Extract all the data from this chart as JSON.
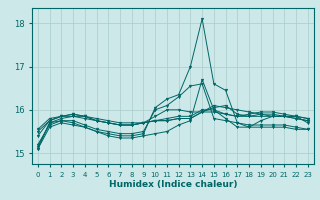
{
  "xlabel": "Humidex (Indice chaleur)",
  "ylabel": "",
  "xlim": [
    -0.5,
    23.5
  ],
  "ylim": [
    14.75,
    18.35
  ],
  "yticks": [
    15,
    16,
    17,
    18
  ],
  "xtick_labels": [
    "0",
    "1",
    "2",
    "3",
    "4",
    "5",
    "6",
    "7",
    "8",
    "9",
    "10",
    "11",
    "12",
    "13",
    "14",
    "15",
    "16",
    "17",
    "18",
    "19",
    "20",
    "21",
    "22",
    "23"
  ],
  "bg_color": "#cde8e8",
  "line_color": "#006666",
  "grid_color": "#aacccc",
  "series": [
    [
      15.1,
      15.7,
      15.8,
      15.85,
      15.8,
      15.75,
      15.7,
      15.65,
      15.65,
      15.7,
      15.75,
      15.75,
      15.8,
      15.8,
      15.95,
      16.1,
      16.05,
      16.0,
      15.95,
      15.9,
      15.85,
      15.85,
      15.8,
      15.75
    ],
    [
      15.4,
      15.75,
      15.85,
      15.9,
      15.85,
      15.75,
      15.7,
      15.65,
      15.65,
      15.7,
      15.75,
      15.8,
      15.85,
      15.85,
      16.0,
      16.0,
      15.9,
      15.85,
      15.85,
      15.9,
      15.9,
      15.85,
      15.8,
      15.75
    ],
    [
      15.5,
      15.75,
      15.85,
      15.9,
      15.85,
      15.75,
      15.7,
      15.65,
      15.65,
      15.7,
      15.75,
      15.75,
      15.8,
      15.8,
      15.95,
      15.95,
      15.9,
      15.85,
      15.9,
      15.95,
      15.95,
      15.9,
      15.85,
      15.8
    ],
    [
      15.55,
      15.8,
      15.85,
      15.85,
      15.85,
      15.8,
      15.75,
      15.7,
      15.7,
      15.7,
      15.85,
      16.0,
      16.0,
      15.95,
      15.95,
      16.05,
      16.1,
      15.9,
      15.85,
      15.85,
      15.85,
      15.85,
      15.85,
      15.8
    ],
    [
      15.15,
      15.7,
      15.75,
      15.75,
      15.65,
      15.55,
      15.5,
      15.45,
      15.45,
      15.5,
      16.0,
      16.1,
      16.3,
      16.55,
      16.6,
      15.8,
      15.75,
      15.7,
      15.65,
      15.65,
      15.65,
      15.65,
      15.6,
      15.55
    ],
    [
      15.2,
      15.65,
      15.75,
      15.7,
      15.6,
      15.5,
      15.45,
      15.4,
      15.4,
      15.45,
      16.05,
      16.25,
      16.35,
      17.0,
      18.1,
      16.6,
      16.45,
      15.7,
      15.6,
      15.6,
      15.6,
      15.6,
      15.55,
      15.55
    ],
    [
      15.1,
      15.6,
      15.7,
      15.65,
      15.6,
      15.5,
      15.4,
      15.35,
      15.35,
      15.4,
      15.45,
      15.5,
      15.65,
      15.75,
      16.7,
      16.0,
      15.8,
      15.6,
      15.6,
      15.75,
      15.85,
      15.85,
      15.85,
      15.7
    ]
  ]
}
